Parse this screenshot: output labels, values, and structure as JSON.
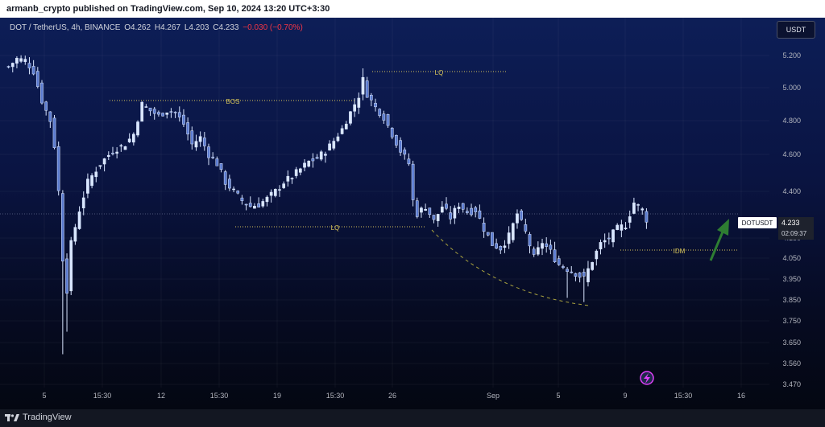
{
  "header": {
    "published_text": "armanb_crypto published on TradingView.com, Sep 10, 2024 13:20 UTC+3:30"
  },
  "legend": {
    "symbol": "DOT / TetherUS, 4h, BINANCE",
    "open": "O4.262",
    "high": "H4.267",
    "low": "L4.203",
    "close": "C4.233",
    "change": "−0.030 (−0.70%)"
  },
  "currency_button": "USDT",
  "footer": {
    "brand": "TradingView"
  },
  "price_label": {
    "symbol": "DOTUSDT",
    "price": "4.233",
    "countdown": "02:09:37"
  },
  "annotations": {
    "bos": "BOS",
    "lq_top": "LQ",
    "lq_bottom": "LQ",
    "idm": "IDM"
  },
  "colors": {
    "accent": "#d8c55a",
    "candle": "#d9e6ff",
    "arrow": "#2e7d32",
    "bg_top": "#0d1e57",
    "bg_bottom": "#040712"
  },
  "icons": {
    "footer_logo": "tradingview-logo-icon",
    "lightning": "lightning-icon"
  },
  "chart_data": {
    "type": "candlestick",
    "title": "DOT / TetherUS, 4h, BINANCE",
    "y_ticks": [
      "5.200",
      "5.000",
      "4.800",
      "4.600",
      "4.400",
      "4.150",
      "4.050",
      "3.950",
      "3.850",
      "3.750",
      "3.650",
      "3.560",
      "3.470"
    ],
    "x_ticks": [
      "5",
      "15:30",
      "12",
      "15:30",
      "19",
      "15:30",
      "26",
      "Sep",
      "5",
      "9",
      "15:30",
      "16"
    ],
    "last_price": 4.233,
    "ohlc_last": {
      "open": 4.262,
      "high": 4.267,
      "low": 4.203,
      "close": 4.233
    },
    "path_points": [
      [
        0,
        5.13
      ],
      [
        2,
        5.18
      ],
      [
        4,
        5.17
      ],
      [
        6,
        5.1
      ],
      [
        8,
        4.92
      ],
      [
        10,
        4.8
      ],
      [
        11,
        4.65
      ],
      [
        12,
        4.4
      ],
      [
        13,
        4.05
      ],
      [
        14,
        3.9
      ],
      [
        15,
        4.12
      ],
      [
        17,
        4.3
      ],
      [
        19,
        4.45
      ],
      [
        22,
        4.55
      ],
      [
        25,
        4.62
      ],
      [
        28,
        4.66
      ],
      [
        30,
        4.72
      ],
      [
        32,
        4.9
      ],
      [
        34,
        4.86
      ],
      [
        36,
        4.83
      ],
      [
        38,
        4.86
      ],
      [
        40,
        4.85
      ],
      [
        42,
        4.78
      ],
      [
        44,
        4.66
      ],
      [
        46,
        4.7
      ],
      [
        48,
        4.6
      ],
      [
        50,
        4.55
      ],
      [
        52,
        4.45
      ],
      [
        54,
        4.4
      ],
      [
        56,
        4.35
      ],
      [
        58,
        4.32
      ],
      [
        60,
        4.33
      ],
      [
        62,
        4.36
      ],
      [
        64,
        4.4
      ],
      [
        66,
        4.45
      ],
      [
        68,
        4.48
      ],
      [
        70,
        4.52
      ],
      [
        72,
        4.56
      ],
      [
        74,
        4.58
      ],
      [
        76,
        4.62
      ],
      [
        78,
        4.68
      ],
      [
        80,
        4.75
      ],
      [
        82,
        4.85
      ],
      [
        84,
        4.95
      ],
      [
        85,
        5.05
      ],
      [
        86,
        4.96
      ],
      [
        88,
        4.88
      ],
      [
        90,
        4.82
      ],
      [
        92,
        4.72
      ],
      [
        94,
        4.62
      ],
      [
        96,
        4.55
      ],
      [
        97,
        4.35
      ],
      [
        98,
        4.28
      ],
      [
        100,
        4.32
      ],
      [
        102,
        4.24
      ],
      [
        104,
        4.32
      ],
      [
        106,
        4.26
      ],
      [
        108,
        4.33
      ],
      [
        110,
        4.29
      ],
      [
        112,
        4.3
      ],
      [
        114,
        4.2
      ],
      [
        116,
        4.12
      ],
      [
        118,
        4.1
      ],
      [
        120,
        4.16
      ],
      [
        121,
        4.22
      ],
      [
        122,
        4.28
      ],
      [
        124,
        4.18
      ],
      [
        126,
        4.05
      ],
      [
        128,
        4.13
      ],
      [
        130,
        4.08
      ],
      [
        132,
        4.02
      ],
      [
        134,
        4.0
      ],
      [
        136,
        3.98
      ],
      [
        138,
        3.95
      ],
      [
        140,
        4.04
      ],
      [
        142,
        4.12
      ],
      [
        144,
        4.15
      ],
      [
        146,
        4.2
      ],
      [
        148,
        4.22
      ],
      [
        150,
        4.34
      ],
      [
        152,
        4.3
      ],
      [
        153,
        4.25
      ]
    ]
  }
}
